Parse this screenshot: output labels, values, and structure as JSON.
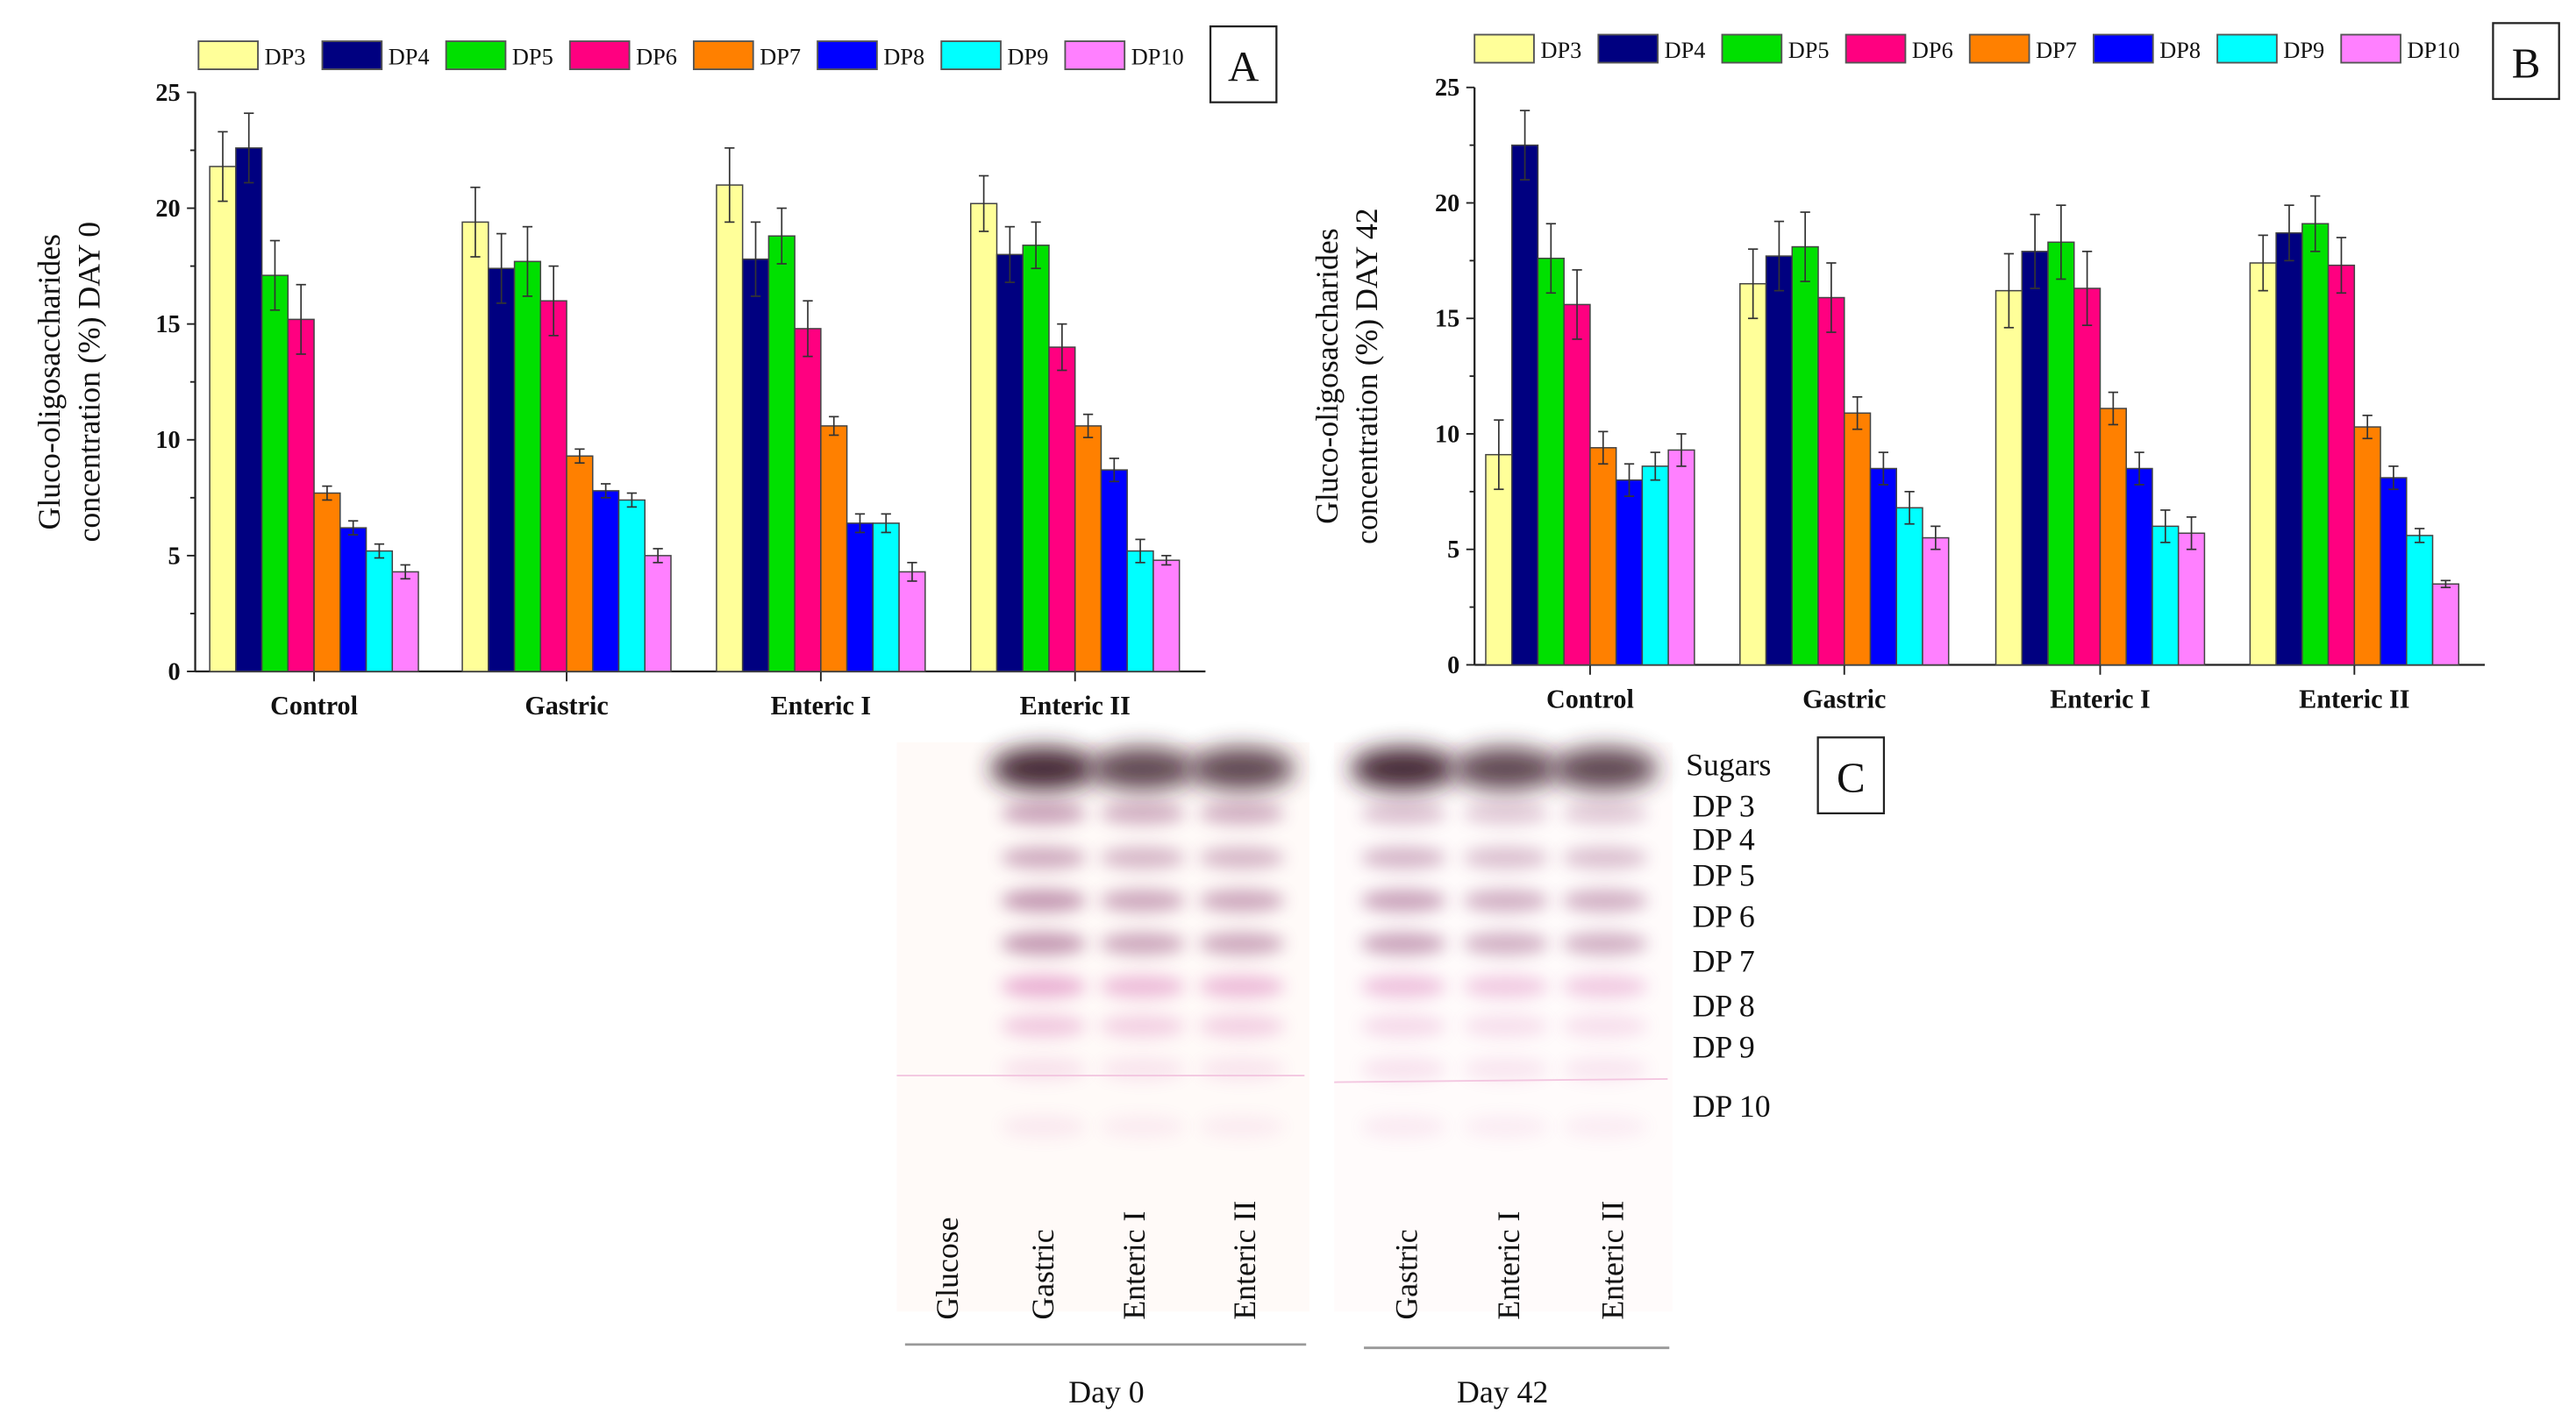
{
  "legend": [
    "DP3",
    "DP4",
    "DP5",
    "DP6",
    "DP7",
    "DP8",
    "DP9",
    "DP10"
  ],
  "colors": [
    "#ffff99",
    "#000080",
    "#00e000",
    "#ff0080",
    "#ff8000",
    "#0000ff",
    "#00ffff",
    "#ff80ff"
  ],
  "chart_data": [
    {
      "type": "bar",
      "panel": "A",
      "title": "",
      "ylabel_line1": "Gluco-oligosaccharides",
      "ylabel_line2": "concentration (%) DAY 0",
      "ylim": [
        0,
        25
      ],
      "yticks": [
        "0",
        "5",
        "10",
        "15",
        "20",
        "25"
      ],
      "categories": [
        "Control",
        "Gastric",
        "Enteric I",
        "Enteric II"
      ],
      "legend_position": "top",
      "series": [
        {
          "name": "DP3",
          "values": [
            21.8,
            19.4,
            21.0,
            20.2
          ],
          "errors": [
            1.5,
            1.5,
            1.6,
            1.2
          ]
        },
        {
          "name": "DP4",
          "values": [
            22.6,
            17.4,
            17.8,
            18.0
          ],
          "errors": [
            1.5,
            1.5,
            1.6,
            1.2
          ]
        },
        {
          "name": "DP5",
          "values": [
            17.1,
            17.7,
            18.8,
            18.4
          ],
          "errors": [
            1.5,
            1.5,
            1.2,
            1.0
          ]
        },
        {
          "name": "DP6",
          "values": [
            15.2,
            16.0,
            14.8,
            14.0
          ],
          "errors": [
            1.5,
            1.5,
            1.2,
            1.0
          ]
        },
        {
          "name": "DP7",
          "values": [
            7.7,
            9.3,
            10.6,
            10.6
          ],
          "errors": [
            0.3,
            0.3,
            0.4,
            0.5
          ]
        },
        {
          "name": "DP8",
          "values": [
            6.2,
            7.8,
            6.4,
            8.7
          ],
          "errors": [
            0.3,
            0.3,
            0.4,
            0.5
          ]
        },
        {
          "name": "DP9",
          "values": [
            5.2,
            7.4,
            6.4,
            5.2
          ],
          "errors": [
            0.3,
            0.3,
            0.4,
            0.5
          ]
        },
        {
          "name": "DP10",
          "values": [
            4.3,
            5.0,
            4.3,
            4.8
          ],
          "errors": [
            0.3,
            0.3,
            0.4,
            0.2
          ]
        }
      ]
    },
    {
      "type": "bar",
      "panel": "B",
      "title": "",
      "ylabel_line1": "Gluco-oligosaccharides",
      "ylabel_line2": "concentration (%) DAY 42",
      "ylim": [
        0,
        25
      ],
      "yticks": [
        "0",
        "5",
        "10",
        "15",
        "20",
        "25"
      ],
      "categories": [
        "Control",
        "Gastric",
        "Enteric I",
        "Enteric II"
      ],
      "legend_position": "top",
      "series": [
        {
          "name": "DP3",
          "values": [
            9.1,
            16.5,
            16.2,
            17.4
          ],
          "errors": [
            1.5,
            1.5,
            1.6,
            1.2
          ]
        },
        {
          "name": "DP4",
          "values": [
            22.5,
            17.7,
            17.9,
            18.7
          ],
          "errors": [
            1.5,
            1.5,
            1.6,
            1.2
          ]
        },
        {
          "name": "DP5",
          "values": [
            17.6,
            18.1,
            18.3,
            19.1
          ],
          "errors": [
            1.5,
            1.5,
            1.6,
            1.2
          ]
        },
        {
          "name": "DP6",
          "values": [
            15.6,
            15.9,
            16.3,
            17.3
          ],
          "errors": [
            1.5,
            1.5,
            1.6,
            1.2
          ]
        },
        {
          "name": "DP7",
          "values": [
            9.4,
            10.9,
            11.1,
            10.3
          ],
          "errors": [
            0.7,
            0.7,
            0.7,
            0.5
          ]
        },
        {
          "name": "DP8",
          "values": [
            8.0,
            8.5,
            8.5,
            8.1
          ],
          "errors": [
            0.7,
            0.7,
            0.7,
            0.5
          ]
        },
        {
          "name": "DP9",
          "values": [
            8.6,
            6.8,
            6.0,
            5.6
          ],
          "errors": [
            0.6,
            0.7,
            0.7,
            0.3
          ]
        },
        {
          "name": "DP10",
          "values": [
            9.3,
            5.5,
            5.7,
            3.5
          ],
          "errors": [
            0.7,
            0.5,
            0.7,
            0.15
          ]
        }
      ]
    }
  ],
  "tlc": {
    "panel": "C",
    "band_labels": [
      "Sugars",
      "DP 3",
      "DP 4",
      "DP 5",
      "DP 6",
      "DP 7",
      "DP 8",
      "DP 9",
      "DP 10"
    ],
    "day0_lanes": [
      "Glucose",
      "Gastric",
      "Enteric I",
      "Enteric II"
    ],
    "day42_lanes": [
      "Gastric",
      "Enteric I",
      "Enteric II"
    ],
    "day0_label": "Day 0",
    "day42_label": "Day 42"
  }
}
